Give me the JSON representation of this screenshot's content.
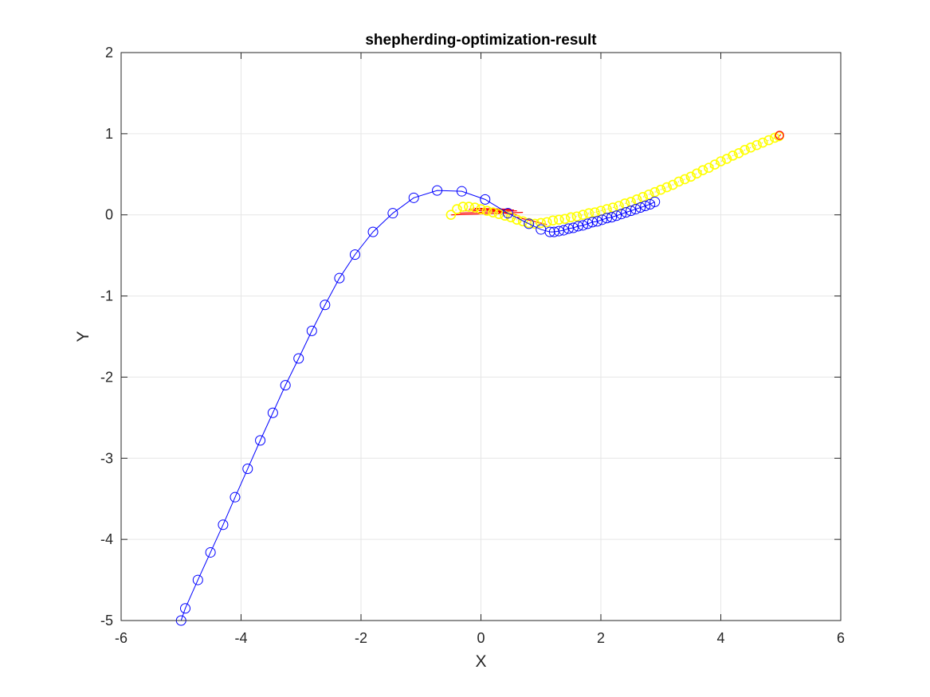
{
  "chart_data": {
    "type": "line",
    "title": "shepherding-optimization-result",
    "xlabel": "X",
    "ylabel": "Y",
    "xlim": [
      -6,
      6
    ],
    "ylim": [
      -5,
      2
    ],
    "xticks": [
      "-6",
      "-4",
      "-2",
      "0",
      "2",
      "4",
      "6"
    ],
    "yticks": [
      "-5",
      "-4",
      "-3",
      "-2",
      "-1",
      "0",
      "1",
      "2"
    ],
    "grid": true,
    "colors": {
      "herd": "#0000ff",
      "sheep": "#ffff00",
      "sheep_edge": "#e6e600",
      "link": "#ff0000",
      "axis": "#262626",
      "grid": "#e6e6e6"
    },
    "series": [
      {
        "marker": "circle",
        "line": "solid",
        "color": "#0000ff",
        "x": [
          -5.0,
          -4.93,
          -4.72,
          -4.51,
          -4.3,
          -4.1,
          -3.89,
          -3.68,
          -3.47,
          -3.26,
          -3.04,
          -2.82,
          -2.6,
          -2.36,
          -2.1,
          -1.8,
          -1.47,
          -1.12,
          -0.73,
          -0.32,
          0.07,
          0.45,
          0.8,
          1.0,
          1.15,
          1.22,
          1.3,
          1.38,
          1.46,
          1.54,
          1.62,
          1.7,
          1.78,
          1.86,
          1.94,
          2.02,
          2.1,
          2.18,
          2.26,
          2.34,
          2.42,
          2.5,
          2.58,
          2.66,
          2.74,
          2.82,
          2.9
        ],
        "y": [
          -5.0,
          -4.85,
          -4.5,
          -4.16,
          -3.82,
          -3.48,
          -3.13,
          -2.78,
          -2.44,
          -2.1,
          -1.77,
          -1.43,
          -1.11,
          -0.78,
          -0.49,
          -0.21,
          0.02,
          0.21,
          0.3,
          0.29,
          0.19,
          0.02,
          -0.11,
          -0.18,
          -0.21,
          -0.21,
          -0.2,
          -0.19,
          -0.17,
          -0.16,
          -0.14,
          -0.13,
          -0.11,
          -0.09,
          -0.08,
          -0.06,
          -0.04,
          -0.03,
          -0.01,
          0.01,
          0.03,
          0.05,
          0.07,
          0.09,
          0.11,
          0.13,
          0.16
        ]
      },
      {
        "marker": "circle",
        "line": "none",
        "color": "#ffff00",
        "x": [
          -0.5,
          -0.4,
          -0.3,
          -0.2,
          -0.1,
          0.0,
          0.1,
          0.2,
          0.3,
          0.4,
          0.5,
          0.6,
          0.7,
          0.8,
          0.9,
          1.0,
          1.1,
          1.2,
          1.3,
          1.4,
          1.5,
          1.6,
          1.7,
          1.8,
          1.9,
          2.0,
          2.1,
          2.2,
          2.3,
          2.4,
          2.5,
          2.6,
          2.7,
          2.8,
          2.9,
          3.0,
          3.1,
          3.2,
          3.3,
          3.4,
          3.5,
          3.6,
          3.7,
          3.8,
          3.9,
          4.0,
          4.1,
          4.2,
          4.3,
          4.4,
          4.5,
          4.6,
          4.7,
          4.8,
          4.9,
          4.97
        ],
        "y": [
          0.0,
          0.07,
          0.1,
          0.1,
          0.09,
          0.07,
          0.05,
          0.03,
          0.01,
          -0.01,
          -0.03,
          -0.06,
          -0.08,
          -0.1,
          -0.11,
          -0.1,
          -0.09,
          -0.07,
          -0.06,
          -0.05,
          -0.03,
          -0.02,
          -0.0,
          0.02,
          0.03,
          0.05,
          0.07,
          0.09,
          0.11,
          0.14,
          0.16,
          0.19,
          0.22,
          0.25,
          0.28,
          0.31,
          0.34,
          0.37,
          0.41,
          0.44,
          0.47,
          0.51,
          0.55,
          0.58,
          0.62,
          0.66,
          0.69,
          0.73,
          0.76,
          0.8,
          0.83,
          0.86,
          0.89,
          0.92,
          0.95,
          0.97
        ]
      },
      {
        "marker": "none",
        "line": "solid",
        "color": "#ff0000",
        "x": [
          -0.5,
          0.7,
          -0.4,
          0.6,
          -0.3,
          0.55,
          -0.2,
          0.5,
          -0.1,
          0.45,
          0.0,
          0.4,
          0.1,
          0.45,
          0.2,
          0.5,
          0.3,
          0.6,
          0.6,
          1.1,
          4.95,
          5.0
        ],
        "y": [
          0.0,
          0.03,
          0.02,
          0.05,
          0.05,
          0.06,
          0.07,
          0.07,
          0.08,
          0.07,
          0.08,
          0.06,
          0.06,
          0.04,
          0.05,
          0.02,
          0.03,
          0.0,
          -0.03,
          -0.12,
          0.95,
          0.99
        ]
      },
      {
        "marker": "circle",
        "line": "none",
        "color": "#ff0000",
        "x": [
          4.98
        ],
        "y": [
          0.98
        ]
      }
    ]
  }
}
